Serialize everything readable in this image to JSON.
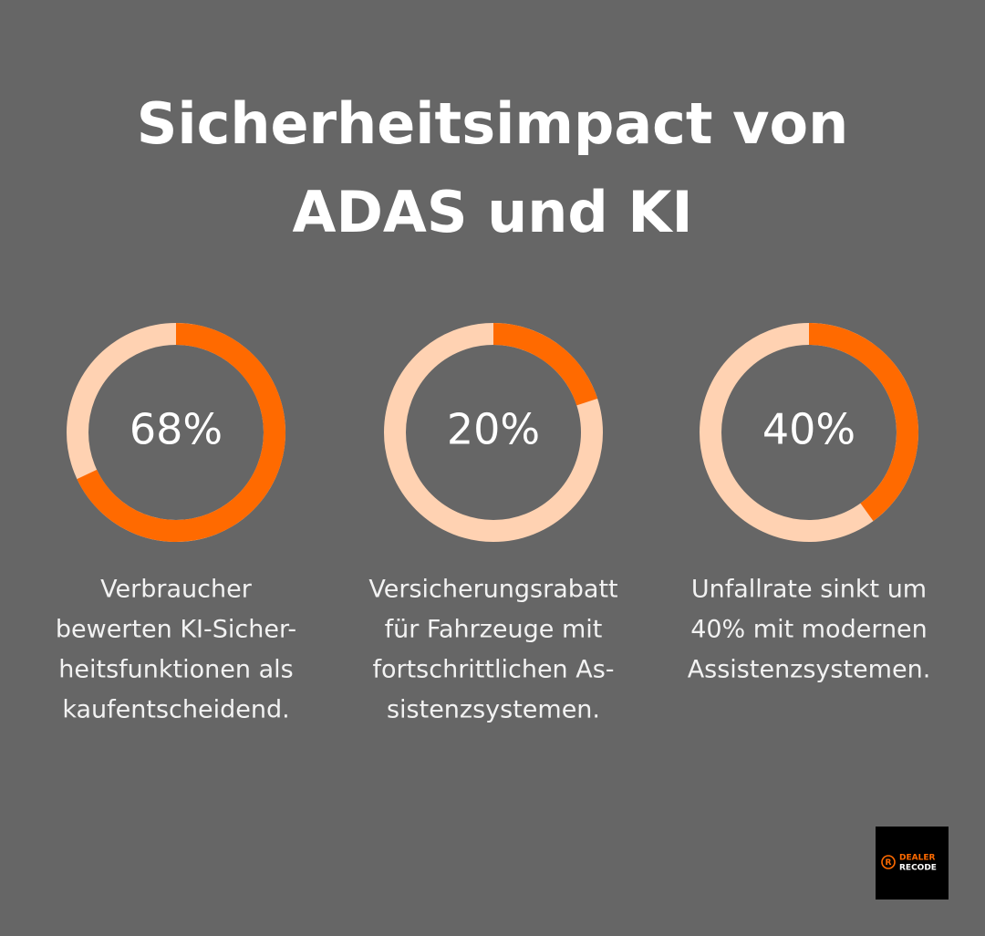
{
  "title_lines": [
    "Sicherheitsimpact von",
    "ADAS und KI"
  ],
  "chart_data": [
    {
      "type": "donut",
      "values": [
        68
      ],
      "value_labels": [
        "68%"
      ],
      "color": "#ff6a00",
      "track_color": "#ffd2b2",
      "caption_lines": [
        "Verbraucher",
        "bewerten KI-Sicher-",
        "heitsfunktionen als",
        "kaufentscheidend."
      ]
    },
    {
      "type": "donut",
      "values": [
        20
      ],
      "value_labels": [
        "20%"
      ],
      "color": "#ff6a00",
      "track_color": "#ffd2b2",
      "caption_lines": [
        "Versicherungsrabatt",
        "für Fahrzeuge mit",
        "fortschrittlichen As-",
        "sistenzsystemen."
      ]
    },
    {
      "type": "donut",
      "values": [
        40
      ],
      "value_labels": [
        "40%"
      ],
      "color": "#ff6a00",
      "track_color": "#ffd2b2",
      "caption_lines": [
        "Unfallrate sinkt um",
        "40% mit modernen",
        "Assistenzsystemen."
      ]
    }
  ],
  "logo": {
    "lines": [
      "DEALER",
      "RECODE"
    ]
  }
}
